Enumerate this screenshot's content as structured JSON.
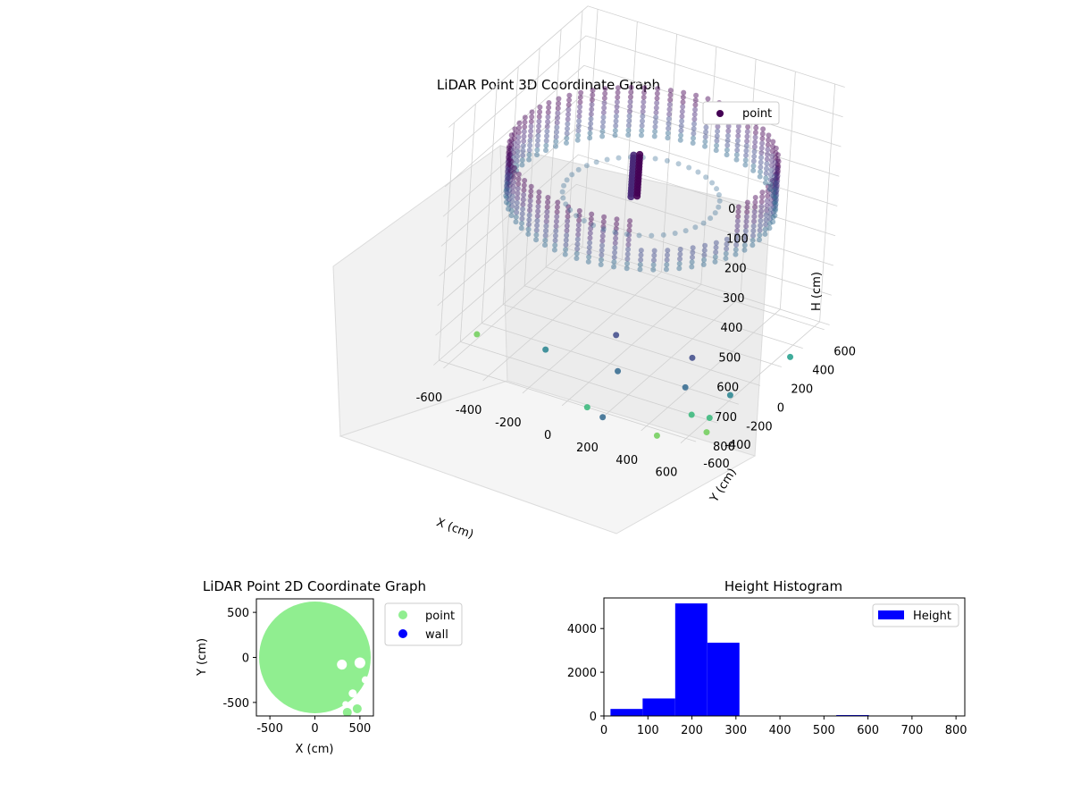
{
  "chart_data": [
    {
      "type": "scatter",
      "projection": "3d",
      "title": "LiDAR Point 3D Coordinate Graph",
      "xlabel": "X (cm)",
      "ylabel": "Y (cm)",
      "zlabel": "H (cm)",
      "xlim": [
        -650,
        650
      ],
      "ylim": [
        -650,
        650
      ],
      "zlim": [
        0,
        800
      ],
      "z_axis_inverted": true,
      "x_ticks": [
        "-600",
        "-400",
        "-200",
        "0",
        "200",
        "400",
        "600"
      ],
      "y_ticks": [
        "-600",
        "-400",
        "-200",
        "0",
        "200",
        "400",
        "600"
      ],
      "z_ticks": [
        "0",
        "100",
        "200",
        "300",
        "400",
        "500",
        "600",
        "700",
        "800"
      ],
      "colormap": "viridis",
      "legend": {
        "placement": "upper-right",
        "entries": [
          {
            "label": "point",
            "color": "#440154"
          }
        ]
      },
      "description_of_data": "ring of wall points at radius ~600 cm, heights ~150-320 cm; central pillar near origin",
      "outlier_points": [
        {
          "x": -620,
          "y": -300,
          "h": 800
        },
        {
          "x": -300,
          "y": -250,
          "h": 800
        },
        {
          "x": 100,
          "y": -600,
          "h": 800
        },
        {
          "x": 200,
          "y": -640,
          "h": 800
        },
        {
          "x": 380,
          "y": -200,
          "h": 800
        },
        {
          "x": 480,
          "y": -650,
          "h": 800
        },
        {
          "x": 520,
          "y": -400,
          "h": 800
        },
        {
          "x": 600,
          "y": -380,
          "h": 800
        },
        {
          "x": 650,
          "y": -500,
          "h": 800
        },
        {
          "x": 580,
          "y": -150,
          "h": 800
        },
        {
          "x": 280,
          "y": 50,
          "h": 800
        },
        {
          "x": -100,
          "y": 40,
          "h": 800
        },
        {
          "x": 60,
          "y": -240,
          "h": 800
        },
        {
          "x": 640,
          "y": 300,
          "h": 800
        }
      ]
    },
    {
      "type": "scatter",
      "title": "LiDAR Point 2D Coordinate Graph",
      "xlabel": "X (cm)",
      "ylabel": "Y (cm)",
      "xlim": [
        -650,
        650
      ],
      "ylim": [
        -650,
        650
      ],
      "x_ticks": [
        "-500",
        "0",
        "500"
      ],
      "y_ticks": [
        "500",
        "0",
        "-500"
      ],
      "legend": {
        "placement": "outside-right",
        "entries": [
          {
            "label": "point",
            "color": "#90ee90"
          },
          {
            "label": "wall",
            "color": "#0000ff"
          }
        ]
      },
      "description_of_data": "filled disk of points radius ~620 cm with gaps on the right side"
    },
    {
      "type": "bar",
      "subtype": "histogram",
      "title": "Height Histogram",
      "xlabel": "",
      "ylabel": "",
      "bins": [
        {
          "from": 15,
          "to": 88,
          "count": 320
        },
        {
          "from": 88,
          "to": 162,
          "count": 800
        },
        {
          "from": 162,
          "to": 235,
          "count": 5150
        },
        {
          "from": 235,
          "to": 308,
          "count": 3350
        },
        {
          "from": 308,
          "to": 382,
          "count": 0
        },
        {
          "from": 382,
          "to": 455,
          "count": 0
        },
        {
          "from": 455,
          "to": 528,
          "count": 0
        },
        {
          "from": 528,
          "to": 602,
          "count": 40
        },
        {
          "from": 602,
          "to": 675,
          "count": 0
        },
        {
          "from": 675,
          "to": 800,
          "count": 0
        }
      ],
      "xlim": [
        0,
        820
      ],
      "ylim": [
        0,
        5400
      ],
      "x_ticks": [
        "0",
        "100",
        "200",
        "300",
        "400",
        "500",
        "600",
        "700",
        "800"
      ],
      "y_ticks": [
        "0",
        "2000",
        "4000"
      ],
      "color": "#0000ff",
      "legend": {
        "placement": "upper-right",
        "entries": [
          {
            "label": "Height",
            "color": "#0000ff"
          }
        ]
      }
    }
  ]
}
